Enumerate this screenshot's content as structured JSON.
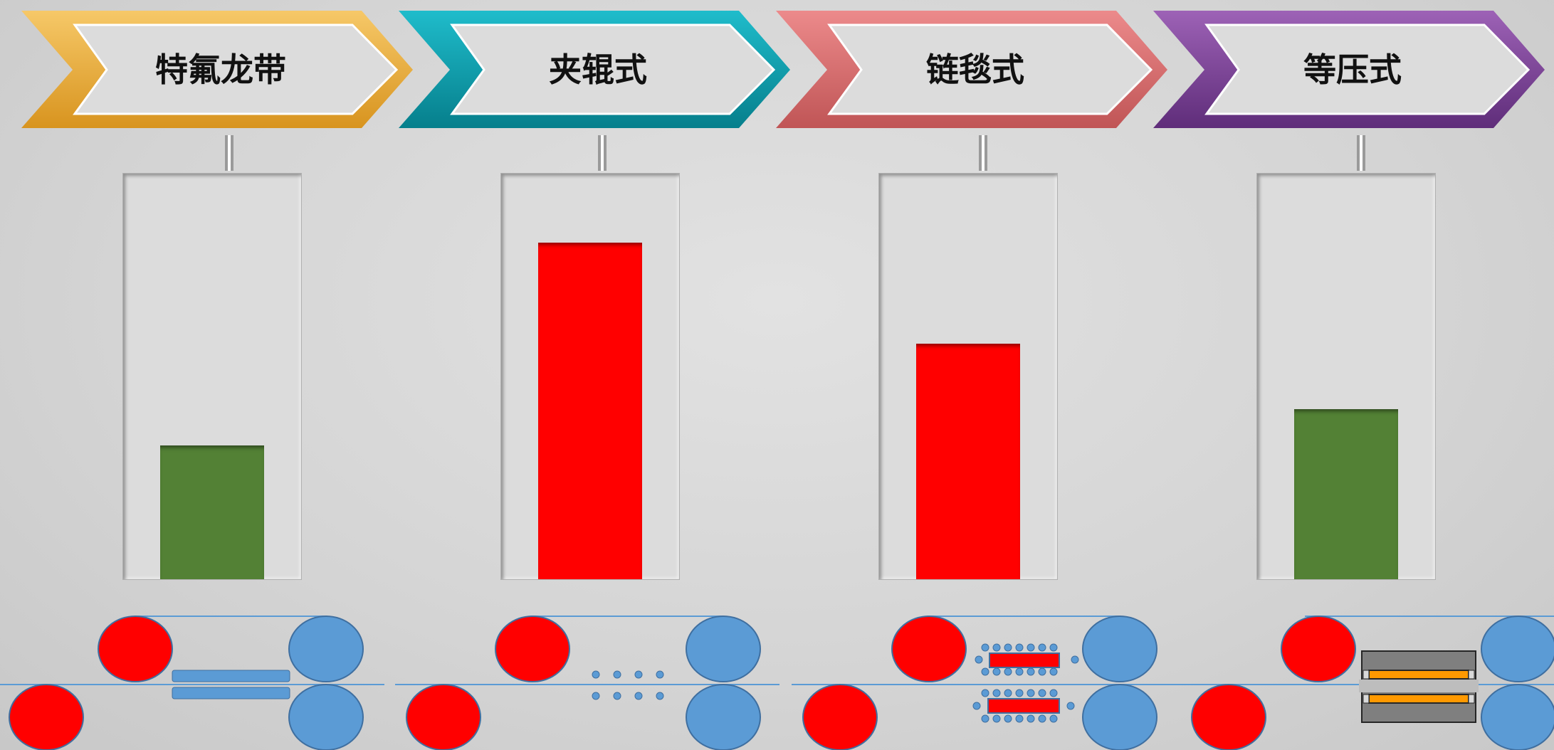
{
  "colors": {
    "high": "#ff0000",
    "low": "#538135",
    "roller_red": "#ff0000",
    "roller_blue": "#5b9bd5"
  },
  "methods": [
    {
      "label": "特氟龙带",
      "arrow_color": "#f0b340",
      "arrow_color_dark": "#c9861a",
      "level": 0.33,
      "status": "low",
      "illustration": "belt-plates"
    },
    {
      "label": "夹辊式",
      "arrow_color": "#10a5b5",
      "arrow_color_dark": "#067f8c",
      "level": 0.83,
      "status": "high",
      "illustration": "nip-rollers"
    },
    {
      "label": "链毯式",
      "arrow_color": "#e27273",
      "arrow_color_dark": "#b84a4b",
      "level": 0.58,
      "status": "high",
      "illustration": "chain-blanket"
    },
    {
      "label": "等压式",
      "arrow_color": "#8b4fa5",
      "arrow_color_dark": "#5f2d7a",
      "level": 0.42,
      "status": "low",
      "illustration": "isobaric-press"
    }
  ]
}
